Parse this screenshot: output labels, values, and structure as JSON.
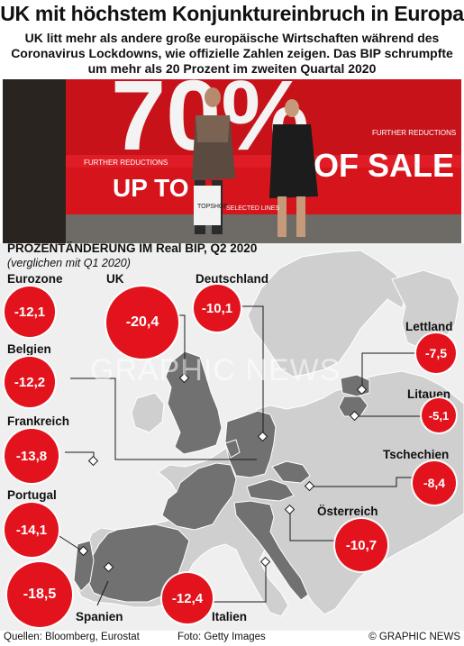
{
  "title": "UK mit höchstem Konjunktureinbruch in Europa",
  "subtitle": "UK litt mehr als andere große europäische Wirtschaften während des Coronavirus Lockdowns, wie offizielle Zahlen zeigen. Das BIP schrumpfte um mehr als 20 Prozent im zweiten Quartal 2020",
  "chart_title": "PROZENTÄNDERUNG IM Real BIP, Q2 2020",
  "chart_subtitle": "(verglichen mit Q1 2020)",
  "photo_sign": {
    "percent": "70%",
    "upto": "UP TO",
    "sale": "OF SALE",
    "reductions": "FURTHER REDUCTIONS",
    "bag": "TOPSHOP",
    "selected": "SELECTED LINES"
  },
  "watermark": "GRAPHIC NEWS",
  "countries": [
    {
      "name": "Eurozone",
      "value": "-12,1"
    },
    {
      "name": "UK",
      "value": "-20,4"
    },
    {
      "name": "Deutschland",
      "value": "-10,1"
    },
    {
      "name": "Belgien",
      "value": "-12,2"
    },
    {
      "name": "Frankreich",
      "value": "-13,8"
    },
    {
      "name": "Portugal",
      "value": "-14,1"
    },
    {
      "name": "Spanien",
      "value": "-18,5"
    },
    {
      "name": "Italien",
      "value": "-12,4"
    },
    {
      "name": "Österreich",
      "value": "-10,7"
    },
    {
      "name": "Tschechien",
      "value": "-8,4"
    },
    {
      "name": "Litauen",
      "value": "-5,1"
    },
    {
      "name": "Lettland",
      "value": "-7,5"
    }
  ],
  "footer": {
    "sources": "Quellen: Bloomberg, Eurostat",
    "photo": "Foto: Getty Images",
    "credit": "© GRAPHIC NEWS"
  },
  "colors": {
    "bubble": "#e3131d",
    "highlight_country": "#717171",
    "land": "#cfcfcf",
    "sea": "#efefef"
  }
}
